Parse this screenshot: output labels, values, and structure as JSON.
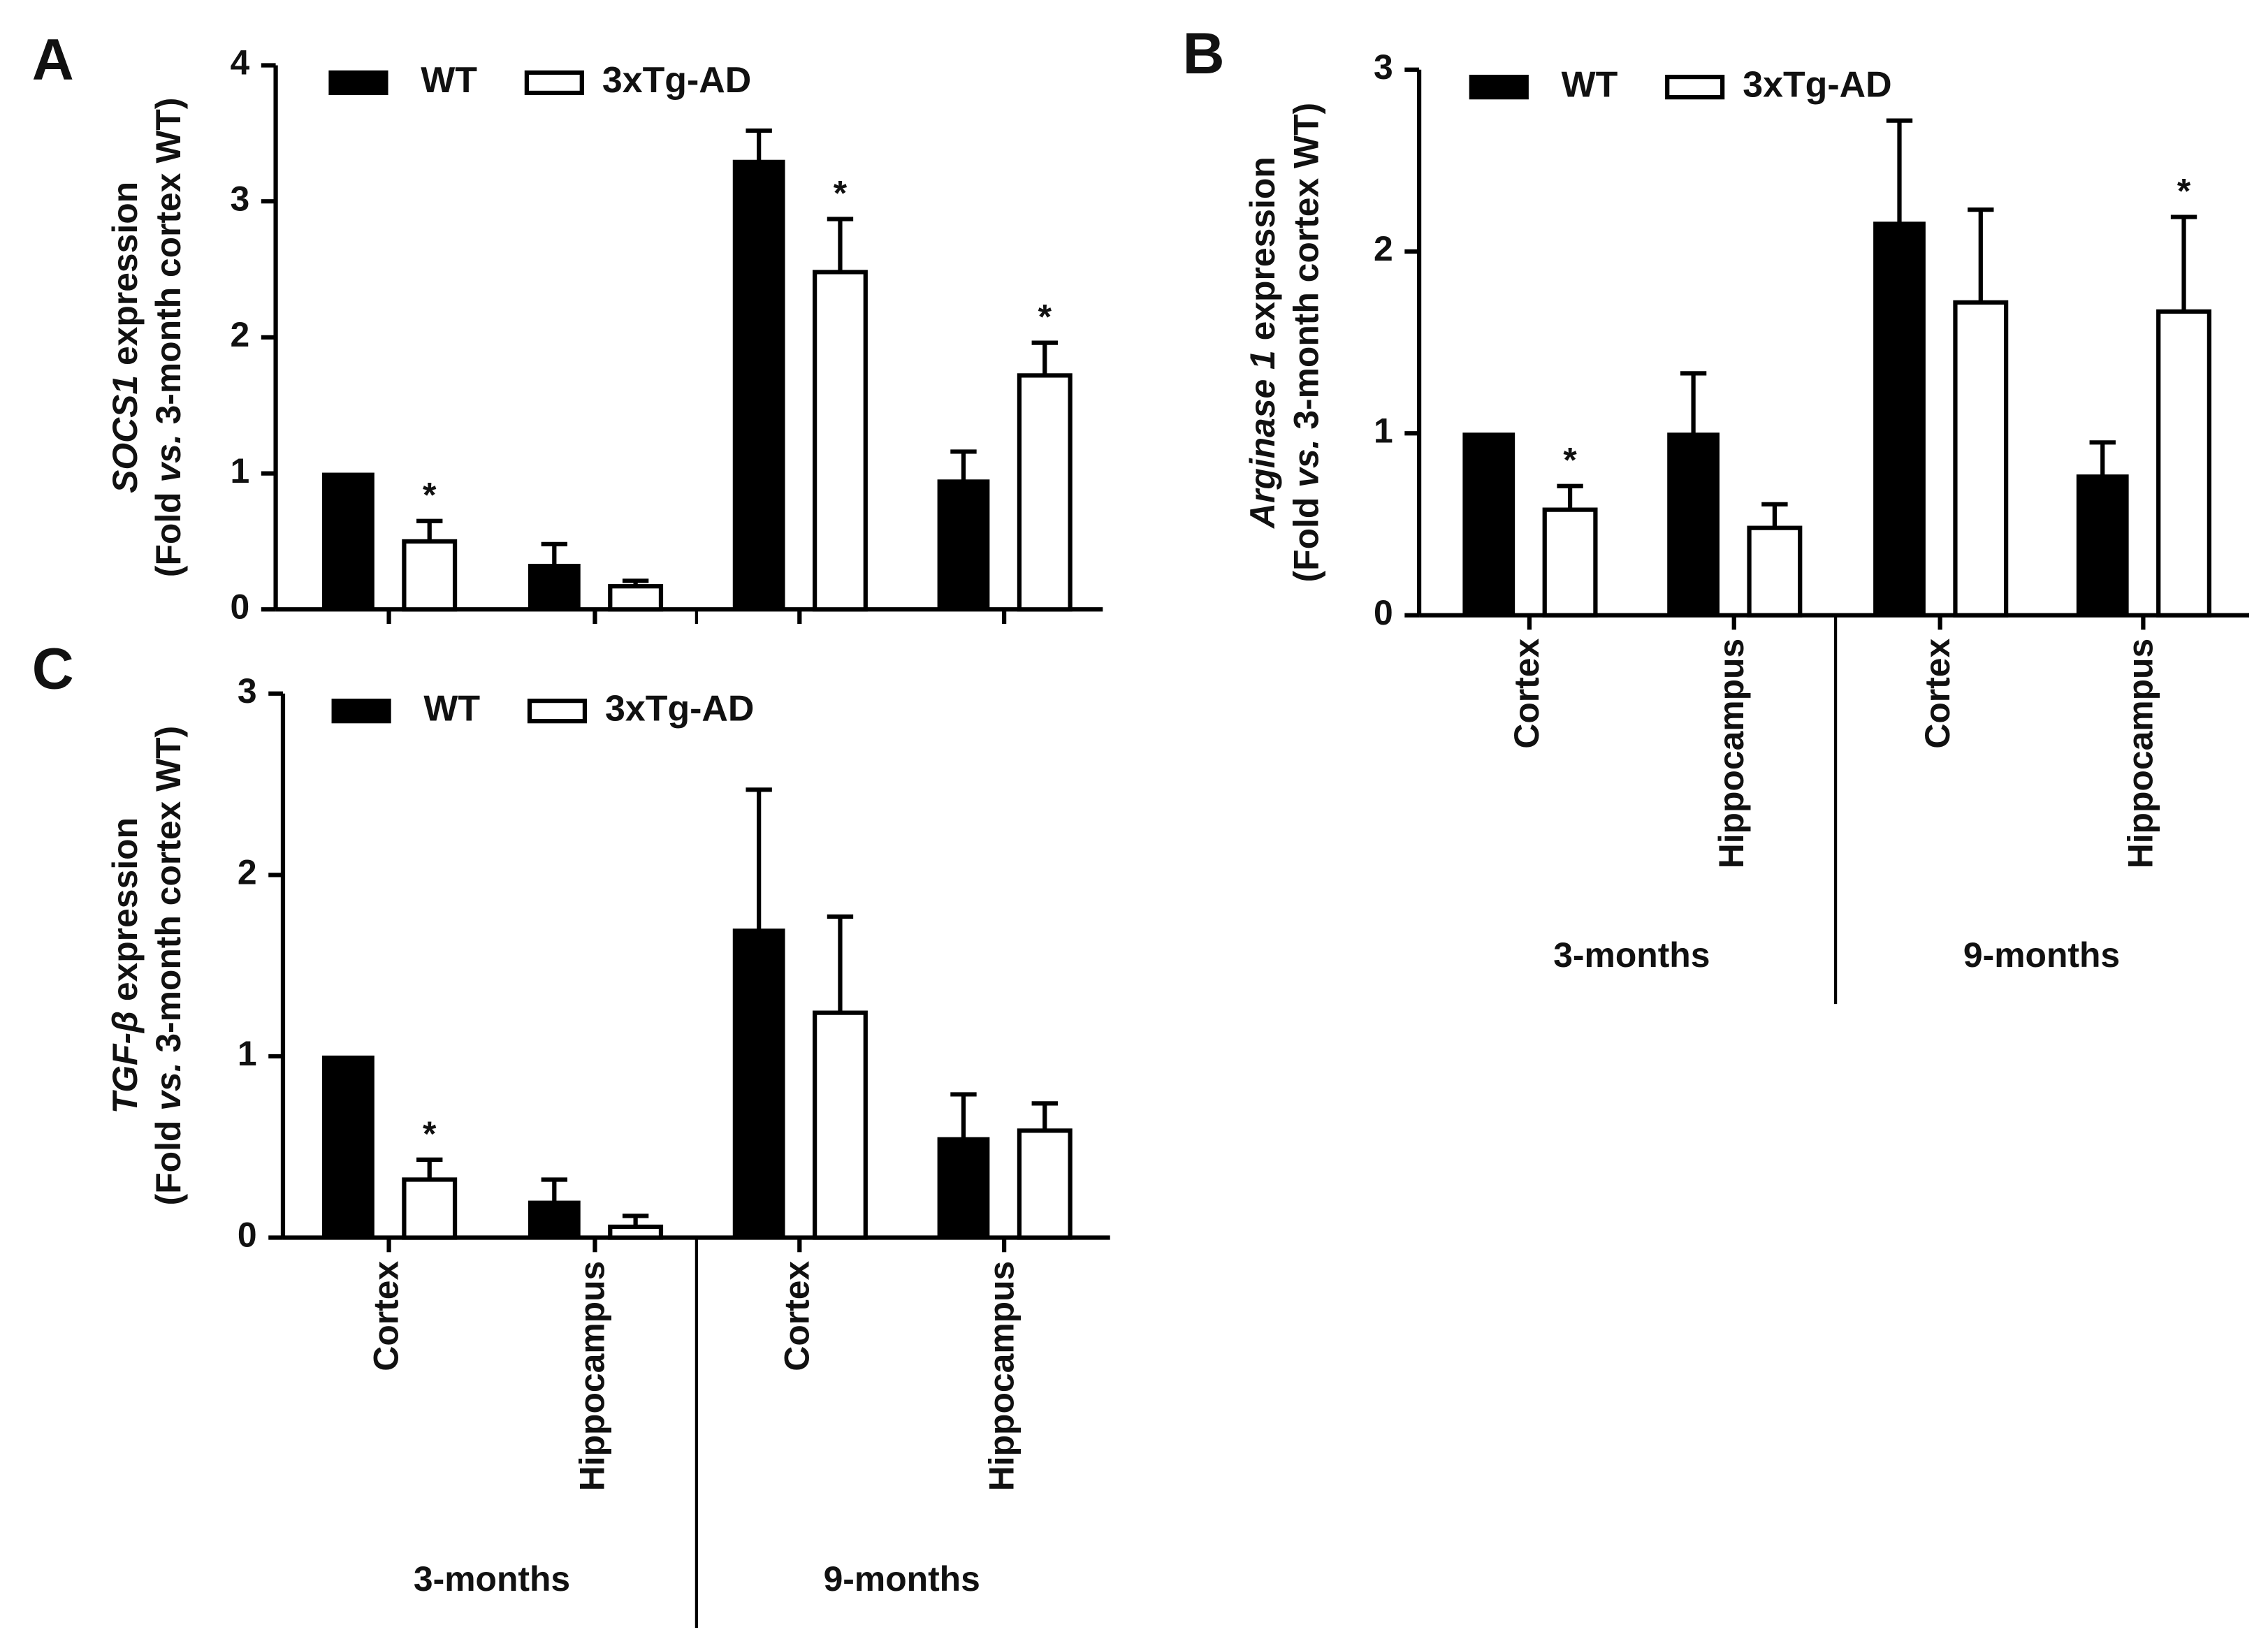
{
  "chart_data": [
    {
      "type": "bar",
      "panel": "A",
      "ylabel_line1": [
        "SOCS1",
        " expression"
      ],
      "ylabel_line2": [
        "(Fold ",
        "vs.",
        " 3-month cortex WT)"
      ],
      "categories": [
        null,
        null,
        null,
        null
      ],
      "series": [
        {
          "name": "WT",
          "color": "#000000",
          "values": [
            1.0,
            0.33,
            3.3,
            0.95
          ],
          "errors": [
            0,
            0.15,
            0.22,
            0.21
          ],
          "annotations": [
            null,
            null,
            null,
            null
          ]
        },
        {
          "name": "3xTg-AD",
          "color": "#ffffff",
          "values": [
            0.5,
            0.17,
            2.48,
            1.72
          ],
          "errors": [
            0.15,
            0.04,
            0.39,
            0.24
          ],
          "annotations": [
            "*",
            null,
            "*",
            "*"
          ]
        }
      ],
      "ylim": [
        0,
        4
      ],
      "yticks": [
        0,
        1,
        2,
        3,
        4
      ],
      "legend": "upper-left"
    },
    {
      "type": "bar",
      "panel": "B",
      "ylabel_line1": [
        "Arginase 1",
        " expression"
      ],
      "ylabel_line2": [
        "(Fold ",
        "vs.",
        " 3-month cortex WT)"
      ],
      "categories": [
        "Cortex",
        "Hippocampus",
        "Cortex",
        "Hippocampus"
      ],
      "groups": [
        "3-months",
        "9-months"
      ],
      "series": [
        {
          "name": "WT",
          "color": "#000000",
          "values": [
            1.0,
            1.0,
            2.16,
            0.77
          ],
          "errors": [
            0,
            0.33,
            0.56,
            0.18
          ],
          "annotations": [
            null,
            null,
            null,
            null
          ]
        },
        {
          "name": "3xTg-AD",
          "color": "#ffffff",
          "values": [
            0.58,
            0.48,
            1.72,
            1.67
          ],
          "errors": [
            0.13,
            0.13,
            0.51,
            0.52
          ],
          "annotations": [
            "*",
            null,
            null,
            "*"
          ]
        }
      ],
      "ylim": [
        0,
        3
      ],
      "yticks": [
        0,
        1,
        2,
        3
      ],
      "legend": "upper-left"
    },
    {
      "type": "bar",
      "panel": "C",
      "ylabel_line1": [
        "TGF-β",
        " expression"
      ],
      "ylabel_line2": [
        "(Fold ",
        "vs.",
        " 3-month cortex WT)"
      ],
      "categories": [
        "Cortex",
        "Hippocampus",
        "Cortex",
        "Hippocampus"
      ],
      "groups": [
        "3-months",
        "9-months"
      ],
      "series": [
        {
          "name": "WT",
          "color": "#000000",
          "values": [
            1.0,
            0.2,
            1.7,
            0.55
          ],
          "errors": [
            0,
            0.12,
            0.77,
            0.24
          ],
          "annotations": [
            null,
            null,
            null,
            null
          ]
        },
        {
          "name": "3xTg-AD",
          "color": "#ffffff",
          "values": [
            0.32,
            0.06,
            1.24,
            0.59
          ],
          "errors": [
            0.11,
            0.06,
            0.53,
            0.15
          ],
          "annotations": [
            "*",
            null,
            null,
            null
          ]
        }
      ],
      "ylim": [
        0,
        3
      ],
      "yticks": [
        0,
        1,
        2,
        3
      ],
      "legend": "upper-left"
    }
  ]
}
